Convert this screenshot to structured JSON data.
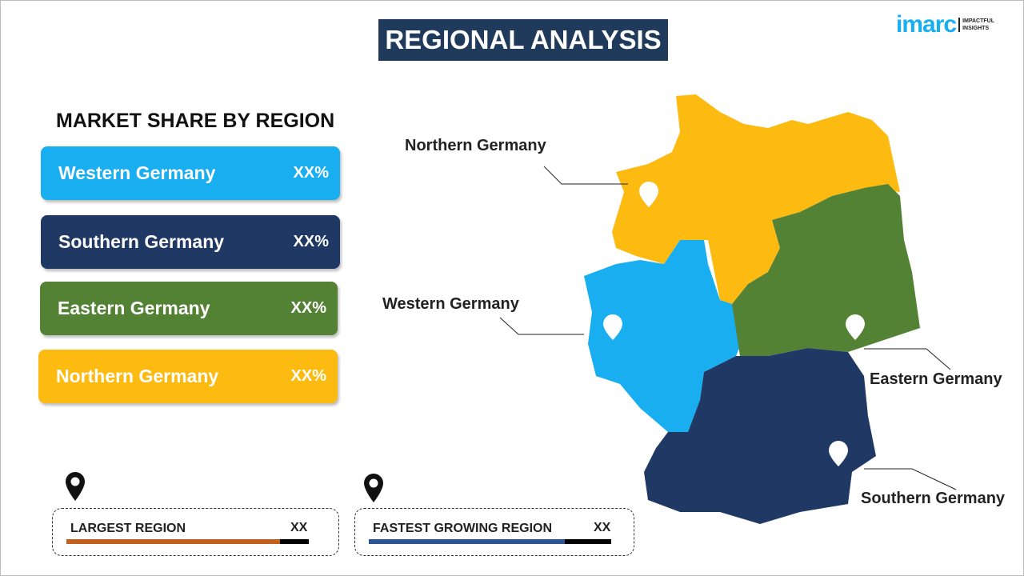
{
  "title": "REGIONAL ANALYSIS",
  "logo": {
    "brand": "imarc",
    "tagline1": "IMPACTFUL",
    "tagline2": "INSIGHTS"
  },
  "subtitle": "MARKET SHARE BY REGION",
  "regions": [
    {
      "name": "Western Germany",
      "value": "XX%",
      "color": "#19aeef"
    },
    {
      "name": "Southern Germany",
      "value": "XX%",
      "color": "#203864"
    },
    {
      "name": "Eastern Germany",
      "value": "XX%",
      "color": "#548235"
    },
    {
      "name": "Northern Germany",
      "value": "XX%",
      "color": "#fdbb11"
    }
  ],
  "map_labels": {
    "northern": "Northern Germany",
    "western": "Western Germany",
    "eastern": "Eastern Germany",
    "southern": "Southern Germany"
  },
  "largest": {
    "label": "LARGEST REGION",
    "value": "XX",
    "color": "#c0601f",
    "fill_percent": 88
  },
  "fastest": {
    "label": "FASTEST  GROWING REGION",
    "value": "XX",
    "color": "#2e5592",
    "fill_percent": 81
  }
}
